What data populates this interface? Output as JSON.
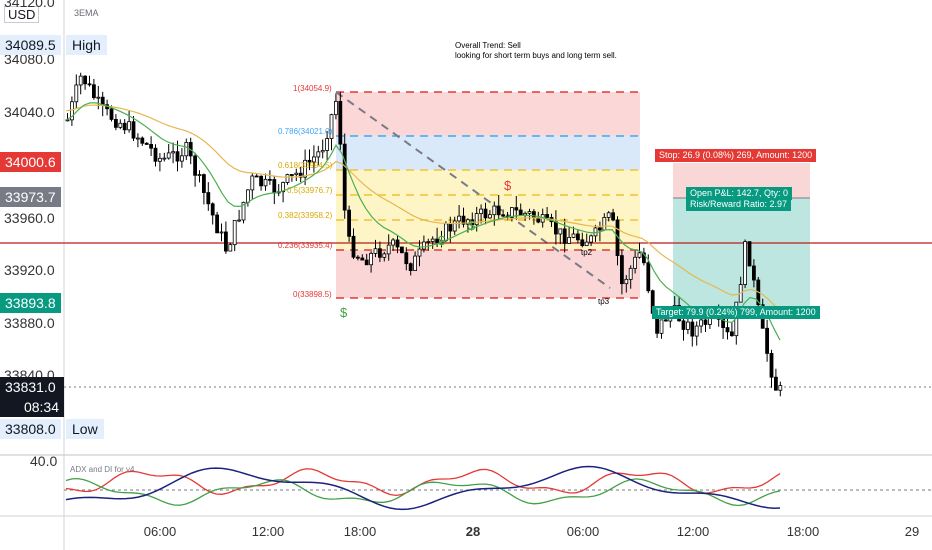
{
  "header": {
    "currency": "USD",
    "indicator": "3EMA"
  },
  "note": {
    "line1": "Overall Trend: Sell",
    "line2": "looking for short term buys and long term sell."
  },
  "price_axis": {
    "ticks": [
      "34120.0",
      "34080.0",
      "34040.0",
      "33960.0",
      "33920.0",
      "33880.0",
      "33840.0"
    ]
  },
  "tags": {
    "high_value": "34089.5",
    "high_label": "High",
    "red_level": "34000.6",
    "grey_level": "33973.7",
    "teal_level": "33893.8",
    "last_price": "33831.0",
    "countdown": "08:34",
    "low_value": "33808.0",
    "low_label": "Low"
  },
  "fib_levels": {
    "l1": "1(34054.9)",
    "l0786": "0.786(34021.0)",
    "l0618": "0.618(33994.5)",
    "l05": "0.5(33976.7)",
    "l0382": "0.382(33958.2)",
    "l0236": "0.236(33935.4)",
    "l0": "0(33898.5)"
  },
  "position": {
    "stop": "Stop: 26.9 (0.08%) 269, Amount: 1200",
    "open_pl": "Open P&L: 142.7, Qty: 0",
    "rr": "Risk/Reward Ratio: 2.97",
    "target": "Target: 79.9 (0.24%) 799, Amount: 1200"
  },
  "markers": {
    "dollar": "$",
    "tp2": "tp2",
    "tp3": "tp3"
  },
  "indicator_pane": {
    "axis_top": "40.0",
    "title": "ADX and DI for v4"
  },
  "time_axis": [
    "06:00",
    "12:00",
    "18:00",
    "28",
    "06:00",
    "12:00",
    "18:00",
    "29"
  ],
  "colors": {
    "up_candle": "#ffffff",
    "down_candle": "#000000",
    "ema_fast": "#4caf50",
    "ema_slow": "#e6b84f",
    "red_line": "#b71c1c",
    "teal": "#089981",
    "adx": "#1a237e",
    "di_plus": "#43a047",
    "di_minus": "#e53935"
  }
}
